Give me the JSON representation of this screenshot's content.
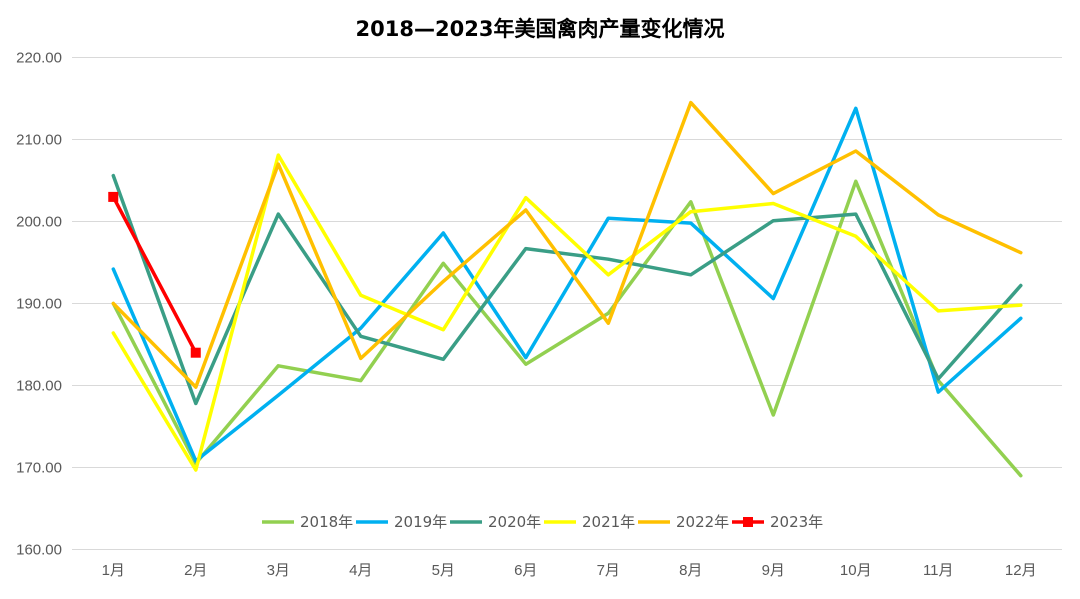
{
  "chart_data": {
    "type": "line",
    "title": "2018—2023年美国禽肉产量变化情况",
    "xlabel": "",
    "ylabel": "",
    "categories": [
      "1月",
      "2月",
      "3月",
      "4月",
      "5月",
      "6月",
      "7月",
      "8月",
      "9月",
      "10月",
      "11月",
      "12月"
    ],
    "ylim": [
      160,
      220
    ],
    "yticks": [
      "160.00",
      "170.00",
      "180.00",
      "190.00",
      "200.00",
      "210.00",
      "220.00"
    ],
    "grid": "horizontal",
    "legend_position": "bottom",
    "series": [
      {
        "name": "2018年",
        "color": "#92d050",
        "marker": "none",
        "values": [
          190.0,
          170.5,
          182.4,
          180.6,
          194.9,
          182.6,
          188.8,
          202.4,
          176.4,
          204.9,
          180.6,
          169.0
        ]
      },
      {
        "name": "2019年",
        "color": "#00b0f0",
        "marker": "none",
        "values": [
          194.2,
          170.8,
          178.8,
          187.0,
          198.6,
          183.4,
          200.4,
          199.8,
          190.6,
          213.8,
          179.2,
          188.2
        ]
      },
      {
        "name": "2020年",
        "color": "#3a9e86",
        "marker": "none",
        "values": [
          205.6,
          177.8,
          200.9,
          186.0,
          183.2,
          196.7,
          195.4,
          193.5,
          200.1,
          200.9,
          180.8,
          192.2
        ]
      },
      {
        "name": "2021年",
        "color": "#ffff00",
        "marker": "none",
        "values": [
          186.4,
          169.7,
          208.1,
          191.0,
          186.8,
          202.9,
          193.5,
          201.2,
          202.2,
          198.2,
          189.1,
          189.8
        ]
      },
      {
        "name": "2022年",
        "color": "#ffc000",
        "marker": "none",
        "values": [
          190.0,
          179.8,
          207.0,
          183.3,
          192.7,
          201.4,
          187.6,
          214.5,
          203.4,
          208.6,
          200.8,
          196.2
        ]
      },
      {
        "name": "2023年",
        "color": "#ff0000",
        "marker": "square",
        "values": [
          203.0,
          184.0,
          null,
          null,
          null,
          null,
          null,
          null,
          null,
          null,
          null,
          null
        ]
      }
    ]
  }
}
